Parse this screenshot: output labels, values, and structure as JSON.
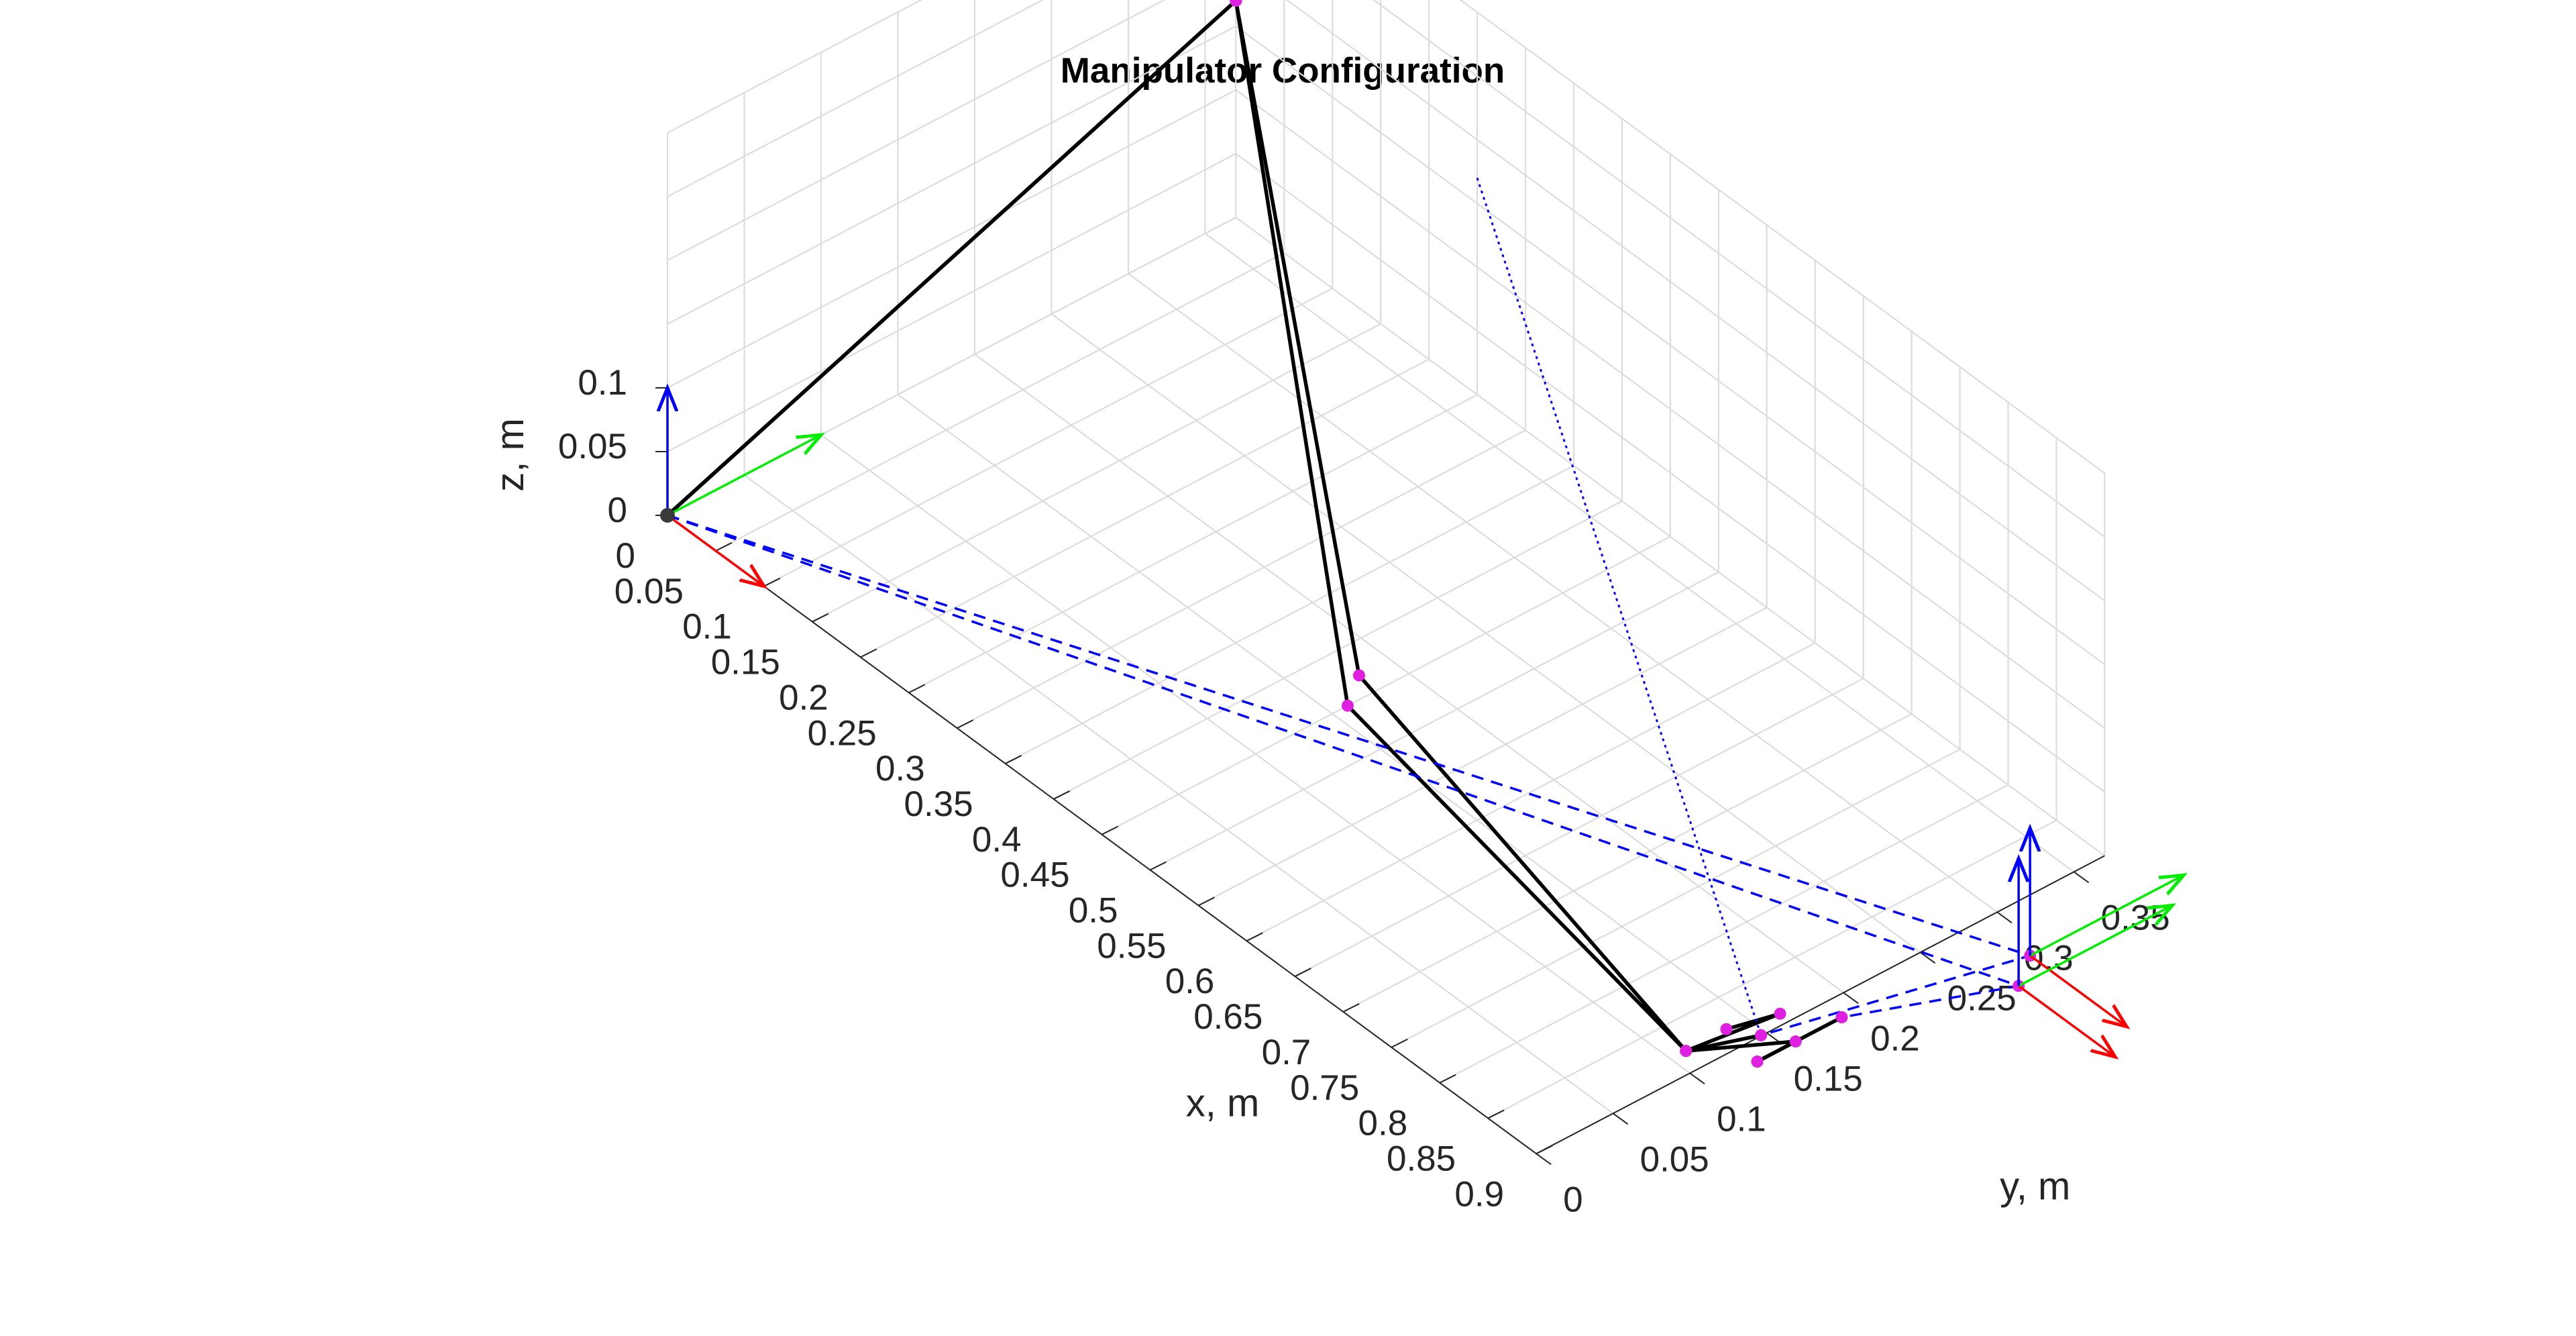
{
  "chart_data": {
    "type": "line3d",
    "title": "Manipulator Configuration",
    "xlabel": "x, m",
    "ylabel": "y, m",
    "zlabel": "z, m",
    "xlim": [
      0,
      0.9
    ],
    "ylim": [
      0,
      0.37
    ],
    "zlim": [
      0,
      0.3
    ],
    "xticks": [
      "0",
      "0.05",
      "0.1",
      "0.15",
      "0.2",
      "0.25",
      "0.3",
      "0.35",
      "0.4",
      "0.45",
      "0.5",
      "0.55",
      "0.6",
      "0.65",
      "0.7",
      "0.75",
      "0.8",
      "0.85",
      "0.9"
    ],
    "yticks": [
      "0",
      "0.05",
      "0.1",
      "0.15",
      "0.2",
      "0.25",
      "0.3",
      "0.35"
    ],
    "zticks": [
      "0",
      "0.05",
      "0.1"
    ],
    "grid": true,
    "colors": {
      "links": "#000000",
      "joints": "#e020e0",
      "projections": "#0000ff",
      "frame_x": "#ff0000",
      "frame_y": "#00ee00",
      "frame_z": "#0000ff"
    },
    "series": [
      {
        "style": "solid",
        "points": [
          [
            0,
            0,
            0
          ],
          [
            0,
            0.37,
            0.17
          ],
          [
            0.43,
            0.18,
            0
          ],
          [
            0.88,
            0.11,
            0
          ],
          [
            0.89,
            0.165,
            0
          ],
          [
            0.89,
            0.13,
            0.01
          ]
        ]
      },
      {
        "style": "solid",
        "points": [
          [
            0,
            0,
            0
          ],
          [
            0,
            0.37,
            0.17
          ],
          [
            0.45,
            0.16,
            0
          ],
          [
            0.88,
            0.11,
            0
          ],
          [
            0.93,
            0.15,
            0.01
          ],
          [
            0.93,
            0.125,
            0.01
          ]
        ]
      },
      {
        "style": "solid",
        "points": [
          [
            0.88,
            0.11,
            0
          ],
          [
            0.91,
            0.14,
            0.01
          ]
        ]
      },
      {
        "style": "solid",
        "points": [
          [
            0.93,
            0.125,
            0.01
          ],
          [
            0.93,
            0.18,
            0.01
          ]
        ]
      },
      {
        "style": "dashed",
        "points": [
          [
            0,
            0,
            0
          ],
          [
            0.95,
            0.29,
            0
          ],
          [
            0.91,
            0.14,
            0.01
          ]
        ]
      },
      {
        "style": "dashed",
        "points": [
          [
            0,
            0,
            0
          ],
          [
            0.97,
            0.27,
            0
          ],
          [
            0.93,
            0.18,
            0.01
          ]
        ]
      },
      {
        "style": "dotted",
        "points": [
          [
            0.25,
            0.37,
            0.17
          ],
          [
            0.91,
            0.14,
            0.01
          ]
        ]
      }
    ],
    "frames": [
      {
        "origin": [
          0,
          0,
          0
        ],
        "length": 0.1
      },
      {
        "origin": [
          0.95,
          0.29,
          0
        ],
        "length": 0.1
      },
      {
        "origin": [
          0.97,
          0.27,
          0
        ],
        "length": 0.1
      }
    ]
  }
}
